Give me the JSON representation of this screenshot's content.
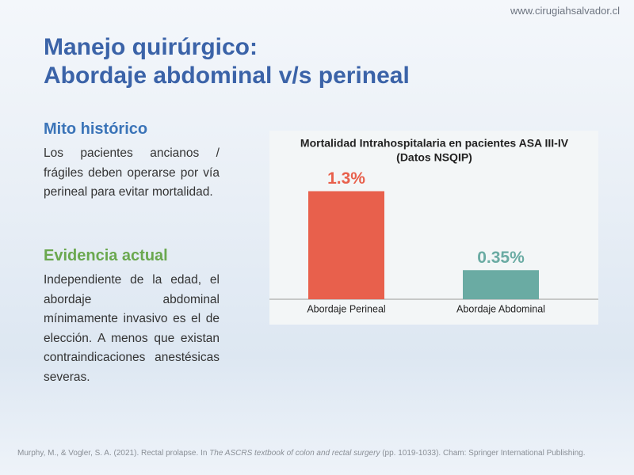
{
  "header": {
    "url": "www.cirugiahsalvador.cl",
    "title_line1": "Manejo quirúrgico:",
    "title_line2": "Abordaje abdominal v/s perineal"
  },
  "sections": [
    {
      "heading": "Mito histórico",
      "body": "Los pacientes ancianos / frágiles deben operarse por vía perineal para evitar mortalidad."
    },
    {
      "heading": "Evidencia actual",
      "body": "Independiente de la edad, el abordaje abdominal mínimamente invasivo es el de elección. A menos que existan contraindicaciones anestésicas severas."
    }
  ],
  "chart_data": {
    "type": "bar",
    "title": [
      "Mortalidad Intrahospitalaria en pacientes ASA III-IV",
      "(Datos NSQIP)"
    ],
    "categories": [
      "Abordaje Perineal",
      "Abordaje Abdominal"
    ],
    "values": [
      1.3,
      0.35
    ],
    "value_labels": [
      "1.3%",
      "0.35%"
    ],
    "colors": [
      "#e8604c",
      "#6aaba3"
    ]
  },
  "footer": {
    "citation": [
      "Murphy, M., & Vogler, S. A. (2021). Rectal prolapse. In ",
      "The ASCRS textbook of colon and rectal surgery",
      " (pp. 1019-1033). Cham: Springer International Publishing."
    ]
  }
}
